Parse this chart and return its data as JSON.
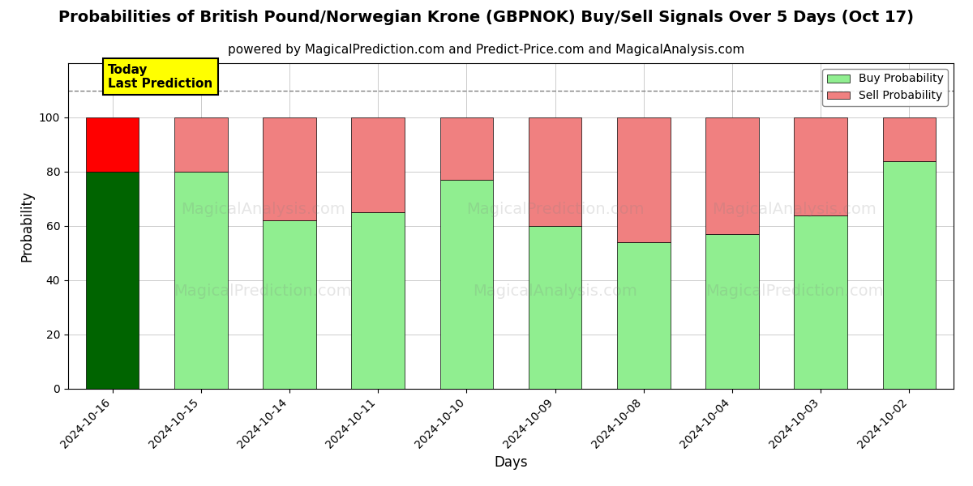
{
  "title": "Probabilities of British Pound/Norwegian Krone (GBPNOK) Buy/Sell Signals Over 5 Days (Oct 17)",
  "subtitle": "powered by MagicalPrediction.com and Predict-Price.com and MagicalAnalysis.com",
  "xlabel": "Days",
  "ylabel": "Probability",
  "categories": [
    "2024-10-16",
    "2024-10-15",
    "2024-10-14",
    "2024-10-11",
    "2024-10-10",
    "2024-10-09",
    "2024-10-08",
    "2024-10-04",
    "2024-10-03",
    "2024-10-02"
  ],
  "buy_values": [
    80,
    80,
    62,
    65,
    77,
    60,
    54,
    57,
    64,
    84
  ],
  "sell_values": [
    20,
    20,
    38,
    35,
    23,
    40,
    46,
    43,
    36,
    16
  ],
  "today_index": 0,
  "today_buy_color": "#006400",
  "today_sell_color": "#FF0000",
  "buy_color": "#90EE90",
  "sell_color": "#F08080",
  "today_label_bg": "#FFFF00",
  "today_label_text": "Today\nLast Prediction",
  "ylim": [
    0,
    120
  ],
  "yticks": [
    0,
    20,
    40,
    60,
    80,
    100
  ],
  "dashed_line_y": 110,
  "legend_buy_label": "Buy Probability",
  "legend_sell_label": "Sell Probability",
  "bar_width": 0.6,
  "title_fontsize": 14,
  "subtitle_fontsize": 11,
  "axis_label_fontsize": 12,
  "tick_fontsize": 10,
  "background_color": "#ffffff",
  "grid_color": "#cccccc"
}
